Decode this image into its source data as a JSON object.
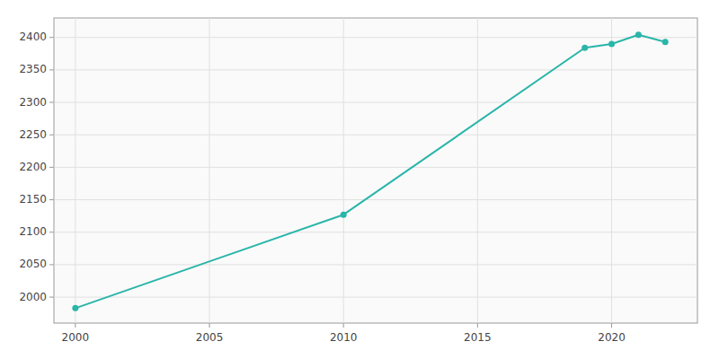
{
  "chart_data": {
    "type": "line",
    "x": [
      2000,
      2010,
      2019,
      2020,
      2021,
      2022
    ],
    "values": [
      1983,
      2127,
      2384,
      2390,
      2404,
      2393
    ],
    "color": "#2ab5a9",
    "marker": "circle",
    "xlim": [
      1999.2,
      2023.2
    ],
    "ylim": [
      1960,
      2430
    ],
    "xticks": [
      2000,
      2005,
      2010,
      2015,
      2020
    ],
    "yticks": [
      2000,
      2050,
      2100,
      2150,
      2200,
      2250,
      2300,
      2350,
      2400
    ],
    "grid": true
  }
}
